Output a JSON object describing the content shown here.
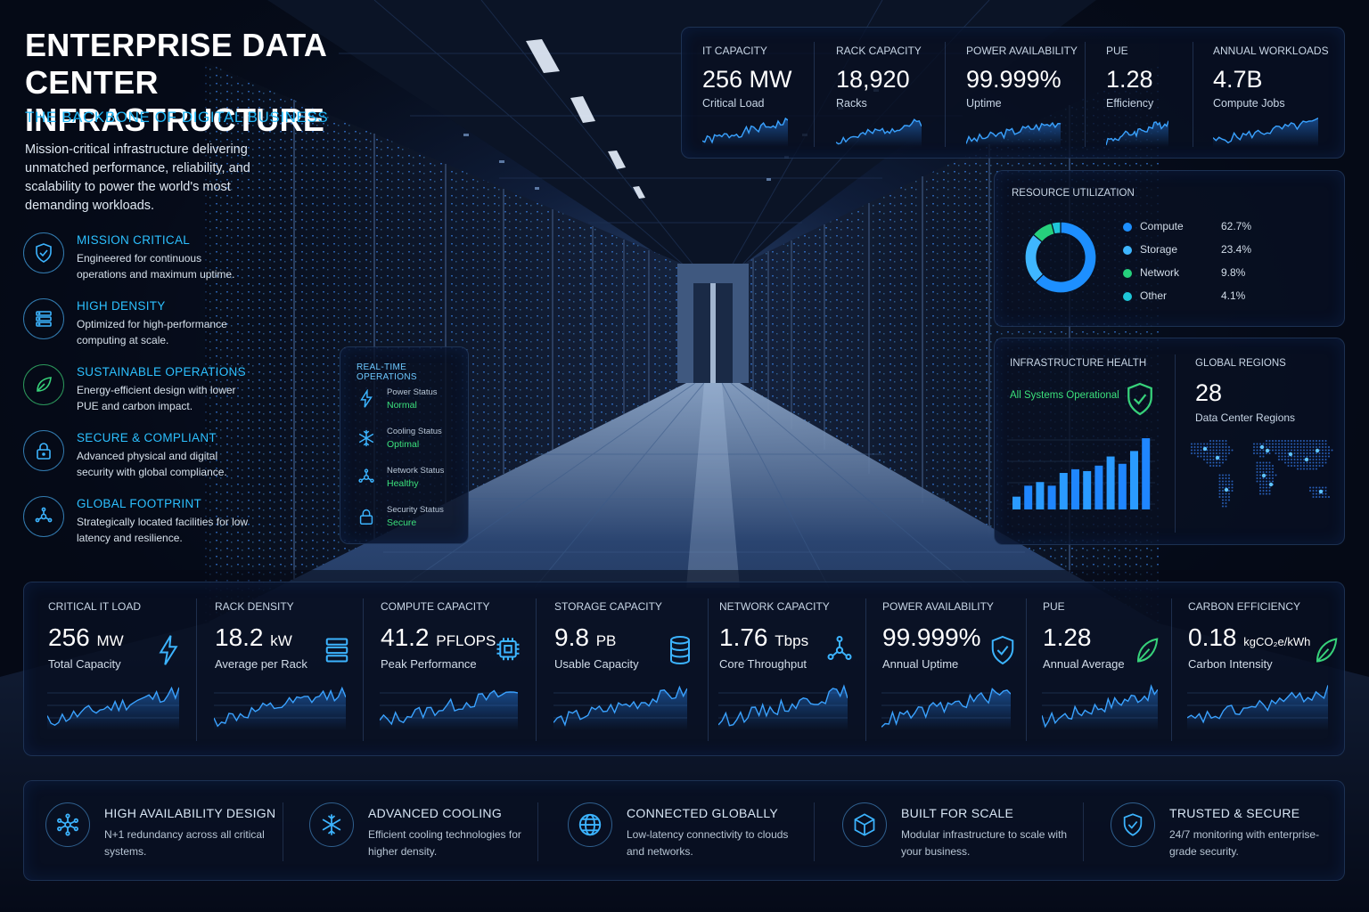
{
  "hero": {
    "title": "ENTERPRISE DATA CENTER INFRASTRUCTURE",
    "subtitle": "THE BACKBONE OF DIGITAL BUSINESS",
    "description": "Mission-critical infrastructure delivering unmatched performance, reliability, and scalability to power the world's most demanding workloads."
  },
  "features": [
    {
      "icon": "shield-check-icon",
      "title": "MISSION CRITICAL",
      "desc": "Engineered for continuous operations and maximum uptime."
    },
    {
      "icon": "server-stack-icon",
      "title": "HIGH DENSITY",
      "desc": "Optimized for high-performance computing at scale."
    },
    {
      "icon": "leaf-icon",
      "title": "SUSTAINABLE OPERATIONS",
      "desc": "Energy-efficient design with lower PUE and carbon impact."
    },
    {
      "icon": "lock-icon",
      "title": "SECURE & COMPLIANT",
      "desc": "Advanced physical and digital security with global compliance."
    },
    {
      "icon": "network-nodes-icon",
      "title": "GLOBAL FOOTPRINT",
      "desc": "Strategically located facilities for low latency and resilience."
    }
  ],
  "realtime": {
    "title": "REAL-TIME OPERATIONS",
    "items": [
      {
        "icon": "lightning-icon",
        "label": "Power Status",
        "value": "Normal"
      },
      {
        "icon": "snowflake-icon",
        "label": "Cooling Status",
        "value": "Optimal"
      },
      {
        "icon": "network-nodes-icon",
        "label": "Network Status",
        "value": "Healthy"
      },
      {
        "icon": "lock-icon",
        "label": "Security Status",
        "value": "Secure"
      }
    ]
  },
  "top_kpis": [
    {
      "label": "IT CAPACITY",
      "value": "256 MW",
      "sub": "Critical Load"
    },
    {
      "label": "RACK CAPACITY",
      "value": "18,920",
      "sub": "Racks"
    },
    {
      "label": "POWER AVAILABILITY",
      "value": "99.999%",
      "sub": "Uptime"
    },
    {
      "label": "PUE",
      "value": "1.28",
      "sub": "Efficiency"
    },
    {
      "label": "ANNUAL WORKLOADS",
      "value": "4.7B",
      "sub": "Compute Jobs"
    }
  ],
  "resource": {
    "title": "RESOURCE UTILIZATION",
    "items": [
      {
        "name": "Compute",
        "pct": "62.7%",
        "value": 62.7,
        "color": "#1d8fff"
      },
      {
        "name": "Storage",
        "pct": "23.4%",
        "value": 23.4,
        "color": "#3fb6ff"
      },
      {
        "name": "Network",
        "pct": "9.8%",
        "value": 9.8,
        "color": "#26d07c"
      },
      {
        "name": "Other",
        "pct": "4.1%",
        "value": 4.1,
        "color": "#1ec6d9"
      }
    ]
  },
  "health": {
    "title": "INFRASTRUCTURE HEALTH",
    "status": "All Systems Operational",
    "bars": [
      14,
      26,
      30,
      26,
      40,
      44,
      42,
      48,
      58,
      50,
      64,
      78
    ]
  },
  "regions": {
    "title": "GLOBAL REGIONS",
    "value": "28",
    "sub": "Data Center Regions"
  },
  "bottom_kpis": [
    {
      "label": "CRITICAL IT LOAD",
      "value": "256",
      "unit": "MW",
      "sub": "Total Capacity",
      "icon": "lightning-icon"
    },
    {
      "label": "RACK DENSITY",
      "value": "18.2",
      "unit": "kW",
      "sub": "Average per Rack",
      "icon": "server-stack-icon"
    },
    {
      "label": "COMPUTE CAPACITY",
      "value": "41.2",
      "unit": "PFLOPS",
      "sub": "Peak Performance",
      "icon": "cpu-chip-icon"
    },
    {
      "label": "STORAGE CAPACITY",
      "value": "9.8",
      "unit": "PB",
      "sub": "Usable Capacity",
      "icon": "database-icon"
    },
    {
      "label": "NETWORK CAPACITY",
      "value": "1.76",
      "unit": "Tbps",
      "sub": "Core Throughput",
      "icon": "network-nodes-icon"
    },
    {
      "label": "POWER AVAILABILITY",
      "value": "99.999%",
      "unit": "",
      "sub": "Annual Uptime",
      "icon": "shield-check-icon"
    },
    {
      "label": "PUE",
      "value": "1.28",
      "unit": "",
      "sub": "Annual Average",
      "icon": "leaf-icon"
    },
    {
      "label": "CARBON EFFICIENCY",
      "value": "0.18",
      "unit": "kgCO₂e/kWh",
      "sub": "Carbon Intensity",
      "icon": "leaf-icon"
    }
  ],
  "banner": [
    {
      "icon": "network-nodes-icon",
      "title": "HIGH AVAILABILITY DESIGN",
      "desc": "N+1 redundancy across all critical systems."
    },
    {
      "icon": "snowflake-icon",
      "title": "ADVANCED COOLING",
      "desc": "Efficient cooling technologies for higher density."
    },
    {
      "icon": "globe-icon",
      "title": "CONNECTED GLOBALLY",
      "desc": "Low-latency connectivity to clouds and networks."
    },
    {
      "icon": "cube-icon",
      "title": "BUILT FOR SCALE",
      "desc": "Modular infrastructure to scale with your business."
    },
    {
      "icon": "shield-check-icon",
      "title": "TRUSTED & SECURE",
      "desc": "24/7 monitoring with enterprise-grade security."
    }
  ],
  "colors": {
    "accent": "#1fb6f5",
    "green": "#3be07b",
    "panel": "#08101f"
  }
}
